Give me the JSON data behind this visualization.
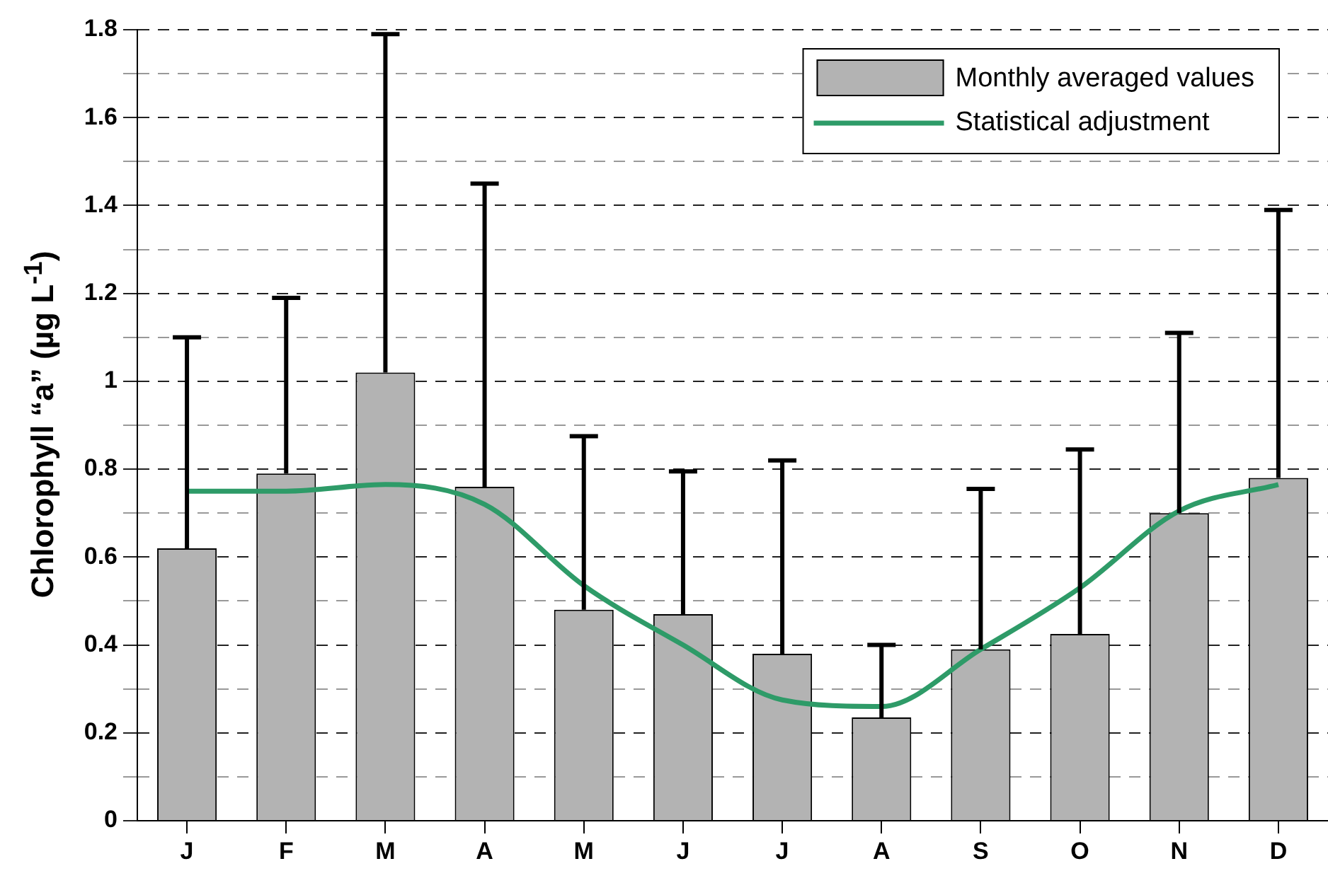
{
  "chart_data": {
    "type": "bar",
    "ylabel": "Chlorophyll “a” (µg L$^{-1}$)",
    "categories": [
      "J",
      "F",
      "M",
      "A",
      "M",
      "J",
      "J",
      "A",
      "S",
      "O",
      "N",
      "D"
    ],
    "series": [
      {
        "name": "Monthly averaged values",
        "color": "#b3b3b3",
        "values": [
          0.62,
          0.79,
          1.02,
          0.76,
          0.48,
          0.47,
          0.38,
          0.235,
          0.39,
          0.425,
          0.7,
          0.78
        ],
        "errors": [
          [
            0.62,
            1.1
          ],
          [
            0.79,
            1.19
          ],
          [
            1.02,
            1.79
          ],
          [
            0.76,
            1.45
          ],
          [
            0.48,
            0.875
          ],
          [
            0.47,
            0.795
          ],
          [
            0.38,
            0.82
          ],
          [
            0.235,
            0.4
          ],
          [
            0.39,
            0.755
          ],
          [
            0.425,
            0.845
          ],
          [
            0.7,
            1.11
          ],
          [
            0.78,
            1.39
          ]
        ]
      },
      {
        "name": "Statistical adjustment",
        "type": "line",
        "color": "#2e9b68",
        "marker": "none",
        "values": [
          0.75,
          0.75,
          0.765,
          0.72,
          0.535,
          0.4,
          0.275,
          0.26,
          0.39,
          0.53,
          0.705,
          0.765
        ]
      }
    ],
    "ylim": [
      0,
      1.8
    ],
    "yticks": [
      0,
      {
        "value": 0.1,
        "label": null
      },
      0.2,
      {
        "value": 0.3,
        "label": null
      },
      0.4,
      {
        "value": 0.5,
        "label": null
      },
      0.6,
      {
        "value": 0.7,
        "label": null
      },
      0.8,
      {
        "value": 0.9,
        "label": null
      },
      1,
      {
        "value": 1.1,
        "label": null
      },
      1.2,
      {
        "value": 1.3,
        "label": null
      },
      1.4,
      {
        "value": 1.5,
        "label": null
      },
      1.6,
      {
        "value": 1.7,
        "label": null
      },
      1.8
    ],
    "grid": "y",
    "legend": "top right"
  }
}
